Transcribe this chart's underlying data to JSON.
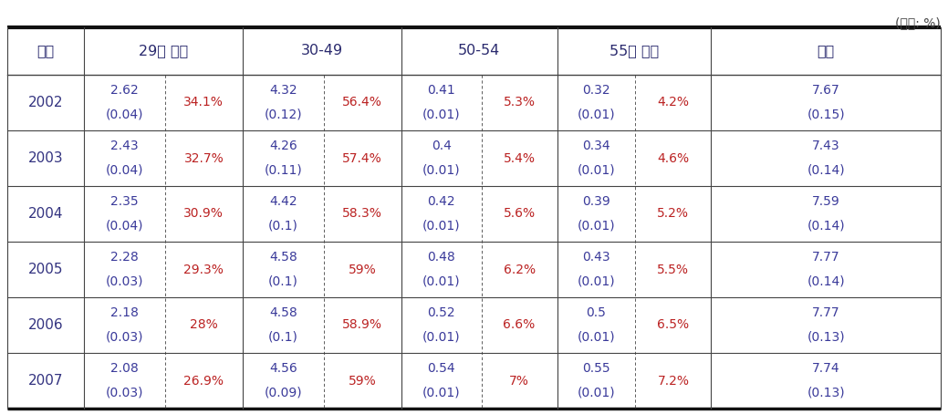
{
  "title_note": "(단위: %)",
  "rows": [
    {
      "year": "2002",
      "v1": "2.62",
      "s1": "(0.04)",
      "p1": "34.1%",
      "v2": "4.32",
      "s2": "(0.12)",
      "p2": "56.4%",
      "v3": "0.41",
      "s3": "(0.01)",
      "p3": "5.3%",
      "v4": "0.32",
      "s4": "(0.01)",
      "p4": "4.2%",
      "v5": "7.67",
      "s5": "(0.15)"
    },
    {
      "year": "2003",
      "v1": "2.43",
      "s1": "(0.04)",
      "p1": "32.7%",
      "v2": "4.26",
      "s2": "(0.11)",
      "p2": "57.4%",
      "v3": "0.4",
      "s3": "(0.01)",
      "p3": "5.4%",
      "v4": "0.34",
      "s4": "(0.01)",
      "p4": "4.6%",
      "v5": "7.43",
      "s5": "(0.14)"
    },
    {
      "year": "2004",
      "v1": "2.35",
      "s1": "(0.04)",
      "p1": "30.9%",
      "v2": "4.42",
      "s2": "(0.1)",
      "p2": "58.3%",
      "v3": "0.42",
      "s3": "(0.01)",
      "p3": "5.6%",
      "v4": "0.39",
      "s4": "(0.01)",
      "p4": "5.2%",
      "v5": "7.59",
      "s5": "(0.14)"
    },
    {
      "year": "2005",
      "v1": "2.28",
      "s1": "(0.03)",
      "p1": "29.3%",
      "v2": "4.58",
      "s2": "(0.1)",
      "p2": "59%",
      "v3": "0.48",
      "s3": "(0.01)",
      "p3": "6.2%",
      "v4": "0.43",
      "s4": "(0.01)",
      "p4": "5.5%",
      "v5": "7.77",
      "s5": "(0.14)"
    },
    {
      "year": "2006",
      "v1": "2.18",
      "s1": "(0.03)",
      "p1": "28%",
      "v2": "4.58",
      "s2": "(0.1)",
      "p2": "58.9%",
      "v3": "0.52",
      "s3": "(0.01)",
      "p3": "6.6%",
      "v4": "0.5",
      "s4": "(0.01)",
      "p4": "6.5%",
      "v5": "7.77",
      "s5": "(0.13)"
    },
    {
      "year": "2007",
      "v1": "2.08",
      "s1": "(0.03)",
      "p1": "26.9%",
      "v2": "4.56",
      "s2": "(0.09)",
      "p2": "59%",
      "v3": "0.54",
      "s3": "(0.01)",
      "p3": "7%",
      "v4": "0.55",
      "s4": "(0.01)",
      "p4": "7.2%",
      "v5": "7.74",
      "s5": "(0.13)"
    }
  ],
  "col_headers": [
    "년도",
    "29세 이하",
    "30-49",
    "50-54",
    "55세 이상",
    "합계"
  ],
  "text_color_blue": "#3a3a9a",
  "text_color_red": "#bb2222",
  "text_color_header": "#2a2a6e",
  "text_color_year": "#333380",
  "border_thick": "#111111",
  "border_thin": "#444444",
  "font_size_note": 10,
  "font_size_header": 11.5,
  "font_size_year": 11,
  "font_size_data": 10
}
